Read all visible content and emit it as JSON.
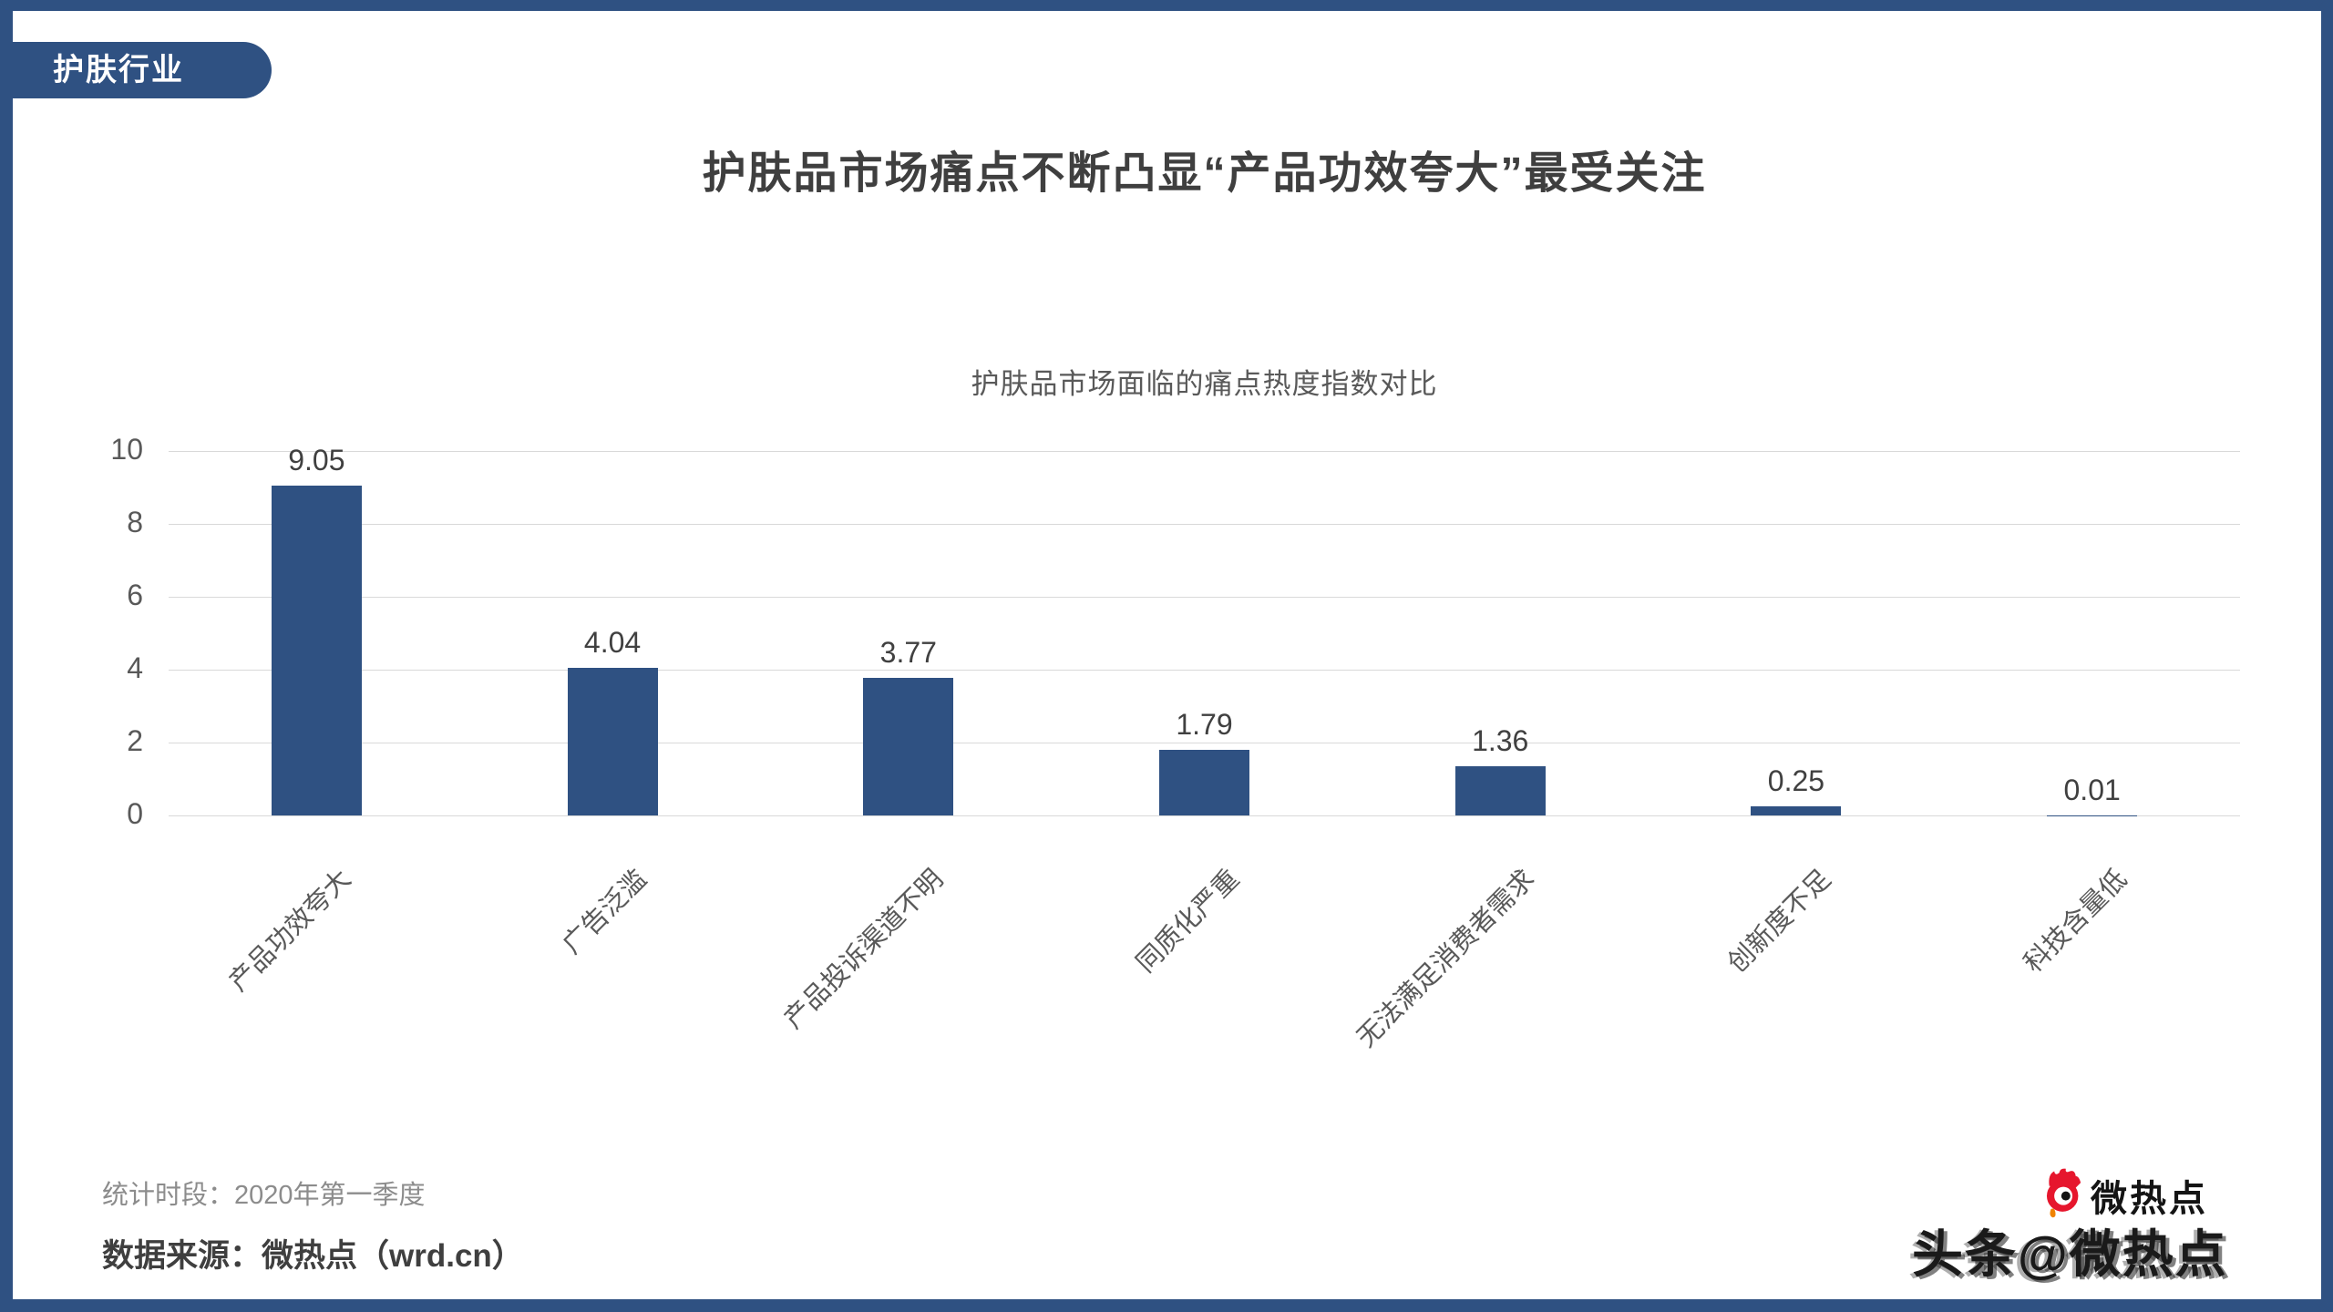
{
  "tab": {
    "label": "护肤行业"
  },
  "header": {
    "title": "护肤品市场痛点不断凸显“产品功效夸大”最受关注"
  },
  "chart_data": {
    "type": "bar",
    "title": "护肤品市场面临的痛点热度指数对比",
    "categories": [
      "产品功效夸大",
      "广告泛滥",
      "产品投诉渠道不明",
      "同质化严重",
      "无法满足消费者需求",
      "创新度不足",
      "科技含量低"
    ],
    "values": [
      9.05,
      4.04,
      3.77,
      1.79,
      1.36,
      0.25,
      0.01
    ],
    "value_labels": [
      "9.05",
      "4.04",
      "3.77",
      "1.79",
      "1.36",
      "0.25",
      "0.01"
    ],
    "xlabel": "",
    "ylabel": "",
    "ylim": [
      0,
      10
    ],
    "y_ticks": [
      0,
      2,
      4,
      6,
      8,
      10
    ],
    "grid": true,
    "legend": "none",
    "bar_color": "#2F5182",
    "grid_color": "#D9D9D9"
  },
  "footer": {
    "period": "统计时段：2020年第一季度",
    "source": "数据来源：微热点（wrd.cn）"
  },
  "watermark": {
    "brand": "微热点",
    "overlay": "头条@微热点"
  },
  "colors": {
    "frame": "#2F5182",
    "bar": "#2F5182",
    "grid": "#D9D9D9",
    "title_text": "#3F3F3F",
    "muted_text": "#595959",
    "footer_muted": "#8C8C8C",
    "logo_red": "#E6162D",
    "logo_orange": "#F08300",
    "watermark_ink": "#1A1A1A"
  }
}
